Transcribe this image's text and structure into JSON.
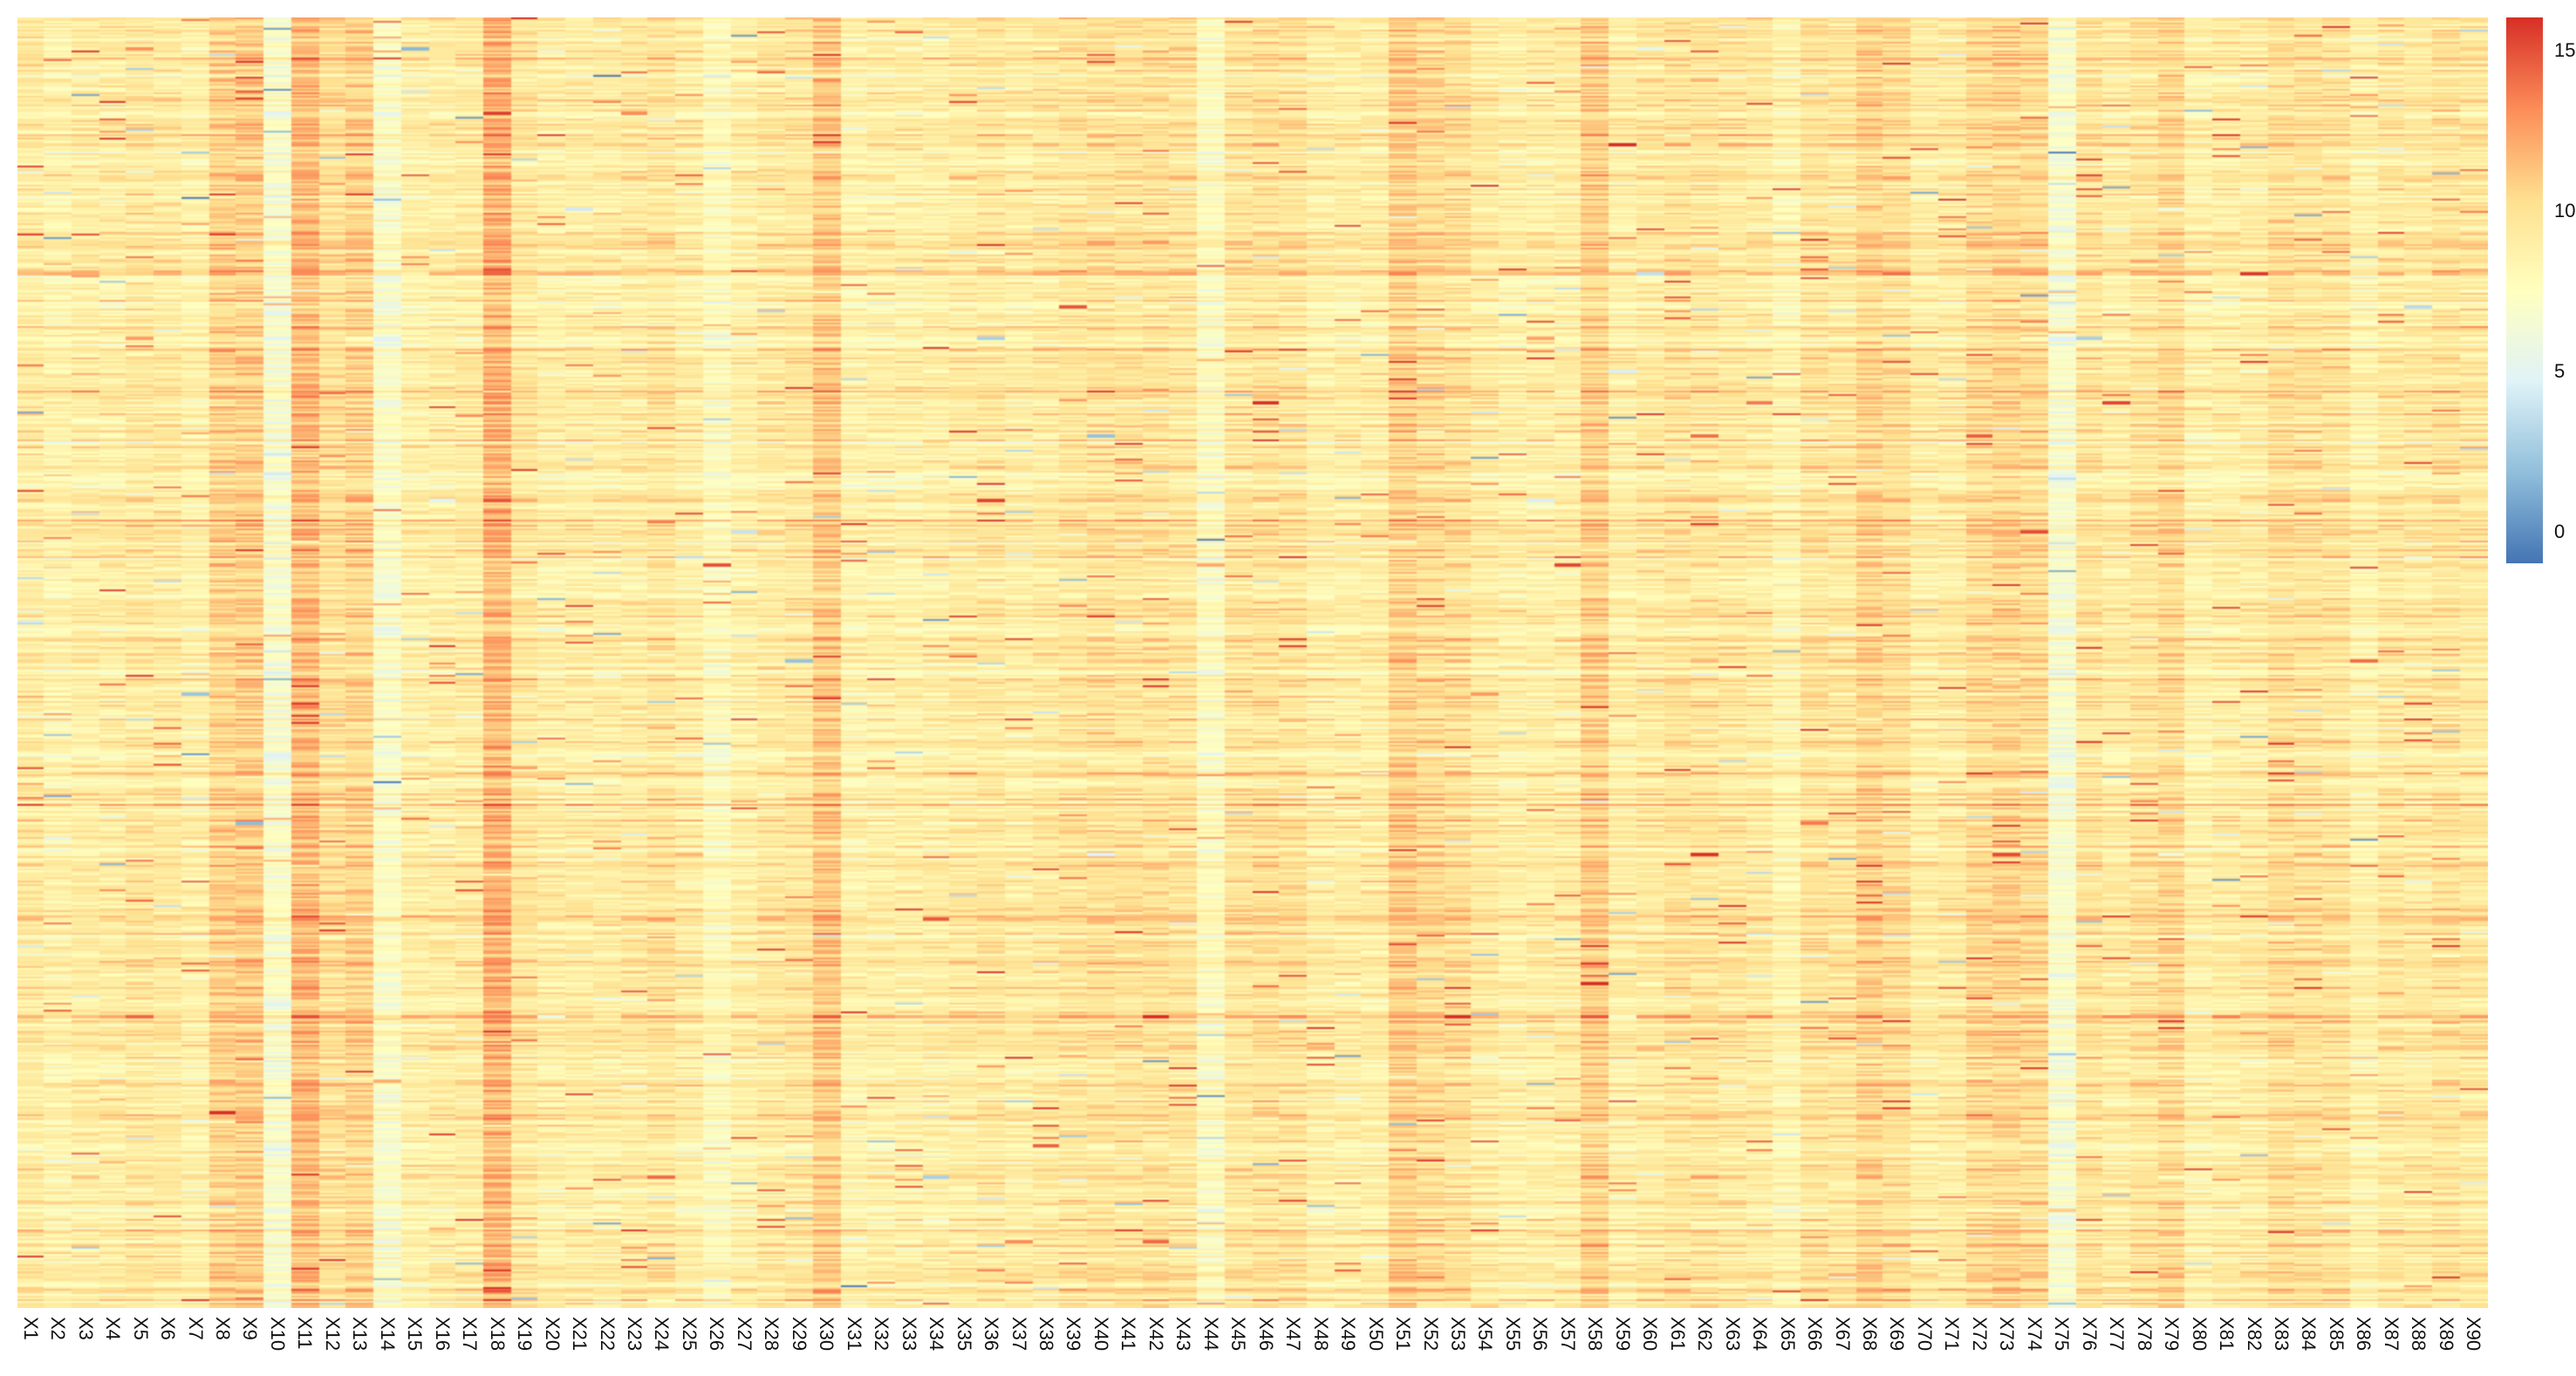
{
  "chart_data": {
    "type": "heatmap",
    "columns": [
      "X1",
      "X2",
      "X3",
      "X4",
      "X5",
      "X6",
      "X7",
      "X8",
      "X9",
      "X10",
      "X11",
      "X12",
      "X13",
      "X14",
      "X15",
      "X16",
      "X17",
      "X18",
      "X19",
      "X20",
      "X21",
      "X22",
      "X23",
      "X24",
      "X25",
      "X26",
      "X27",
      "X28",
      "X29",
      "X30",
      "X31",
      "X32",
      "X33",
      "X34",
      "X35",
      "X36",
      "X37",
      "X38",
      "X39",
      "X40",
      "X41",
      "X42",
      "X43",
      "X44",
      "X45",
      "X46",
      "X47",
      "X48",
      "X49",
      "X50",
      "X51",
      "X52",
      "X53",
      "X54",
      "X55",
      "X56",
      "X57",
      "X58",
      "X59",
      "X60",
      "X61",
      "X62",
      "X63",
      "X64",
      "X65",
      "X66",
      "X67",
      "X68",
      "X69",
      "X70",
      "X71",
      "X72",
      "X73",
      "X74",
      "X75",
      "X76",
      "X77",
      "X78",
      "X79",
      "X80",
      "X81",
      "X82",
      "X83",
      "X84",
      "X85",
      "X86",
      "X87",
      "X88",
      "X89",
      "X90"
    ],
    "row_count": 700,
    "column_mean_values": [
      9.2,
      8.6,
      9.0,
      9.0,
      9.4,
      9.3,
      8.7,
      10.6,
      10.8,
      7.0,
      11.6,
      10.0,
      10.6,
      7.2,
      8.8,
      9.0,
      9.2,
      11.8,
      9.5,
      8.9,
      9.0,
      9.0,
      9.2,
      9.6,
      9.0,
      7.8,
      8.8,
      9.3,
      9.5,
      11.0,
      8.6,
      8.8,
      8.8,
      8.9,
      9.2,
      9.4,
      9.0,
      9.3,
      9.6,
      9.8,
      9.7,
      9.8,
      9.6,
      7.6,
      9.6,
      9.8,
      9.7,
      8.9,
      8.9,
      9.0,
      10.8,
      10.2,
      10.0,
      9.2,
      8.8,
      8.9,
      9.0,
      10.8,
      8.9,
      9.3,
      9.7,
      9.6,
      9.4,
      9.2,
      8.4,
      9.7,
      9.5,
      10.6,
      10.1,
      9.0,
      9.2,
      10.2,
      10.5,
      10.2,
      6.8,
      9.7,
      9.1,
      9.7,
      10.3,
      8.7,
      9.0,
      9.1,
      10.0,
      9.8,
      9.7,
      8.6,
      9.4,
      9.3,
      9.7,
      9.4
    ],
    "color_scale": {
      "min": -1,
      "max": 16,
      "stops": [
        "#4575b4",
        "#91bfdb",
        "#e0f3f8",
        "#ffffbf",
        "#fee090",
        "#fc8d59",
        "#d73027"
      ],
      "ticks": [
        0,
        5,
        10,
        15
      ]
    },
    "legend": "right"
  }
}
